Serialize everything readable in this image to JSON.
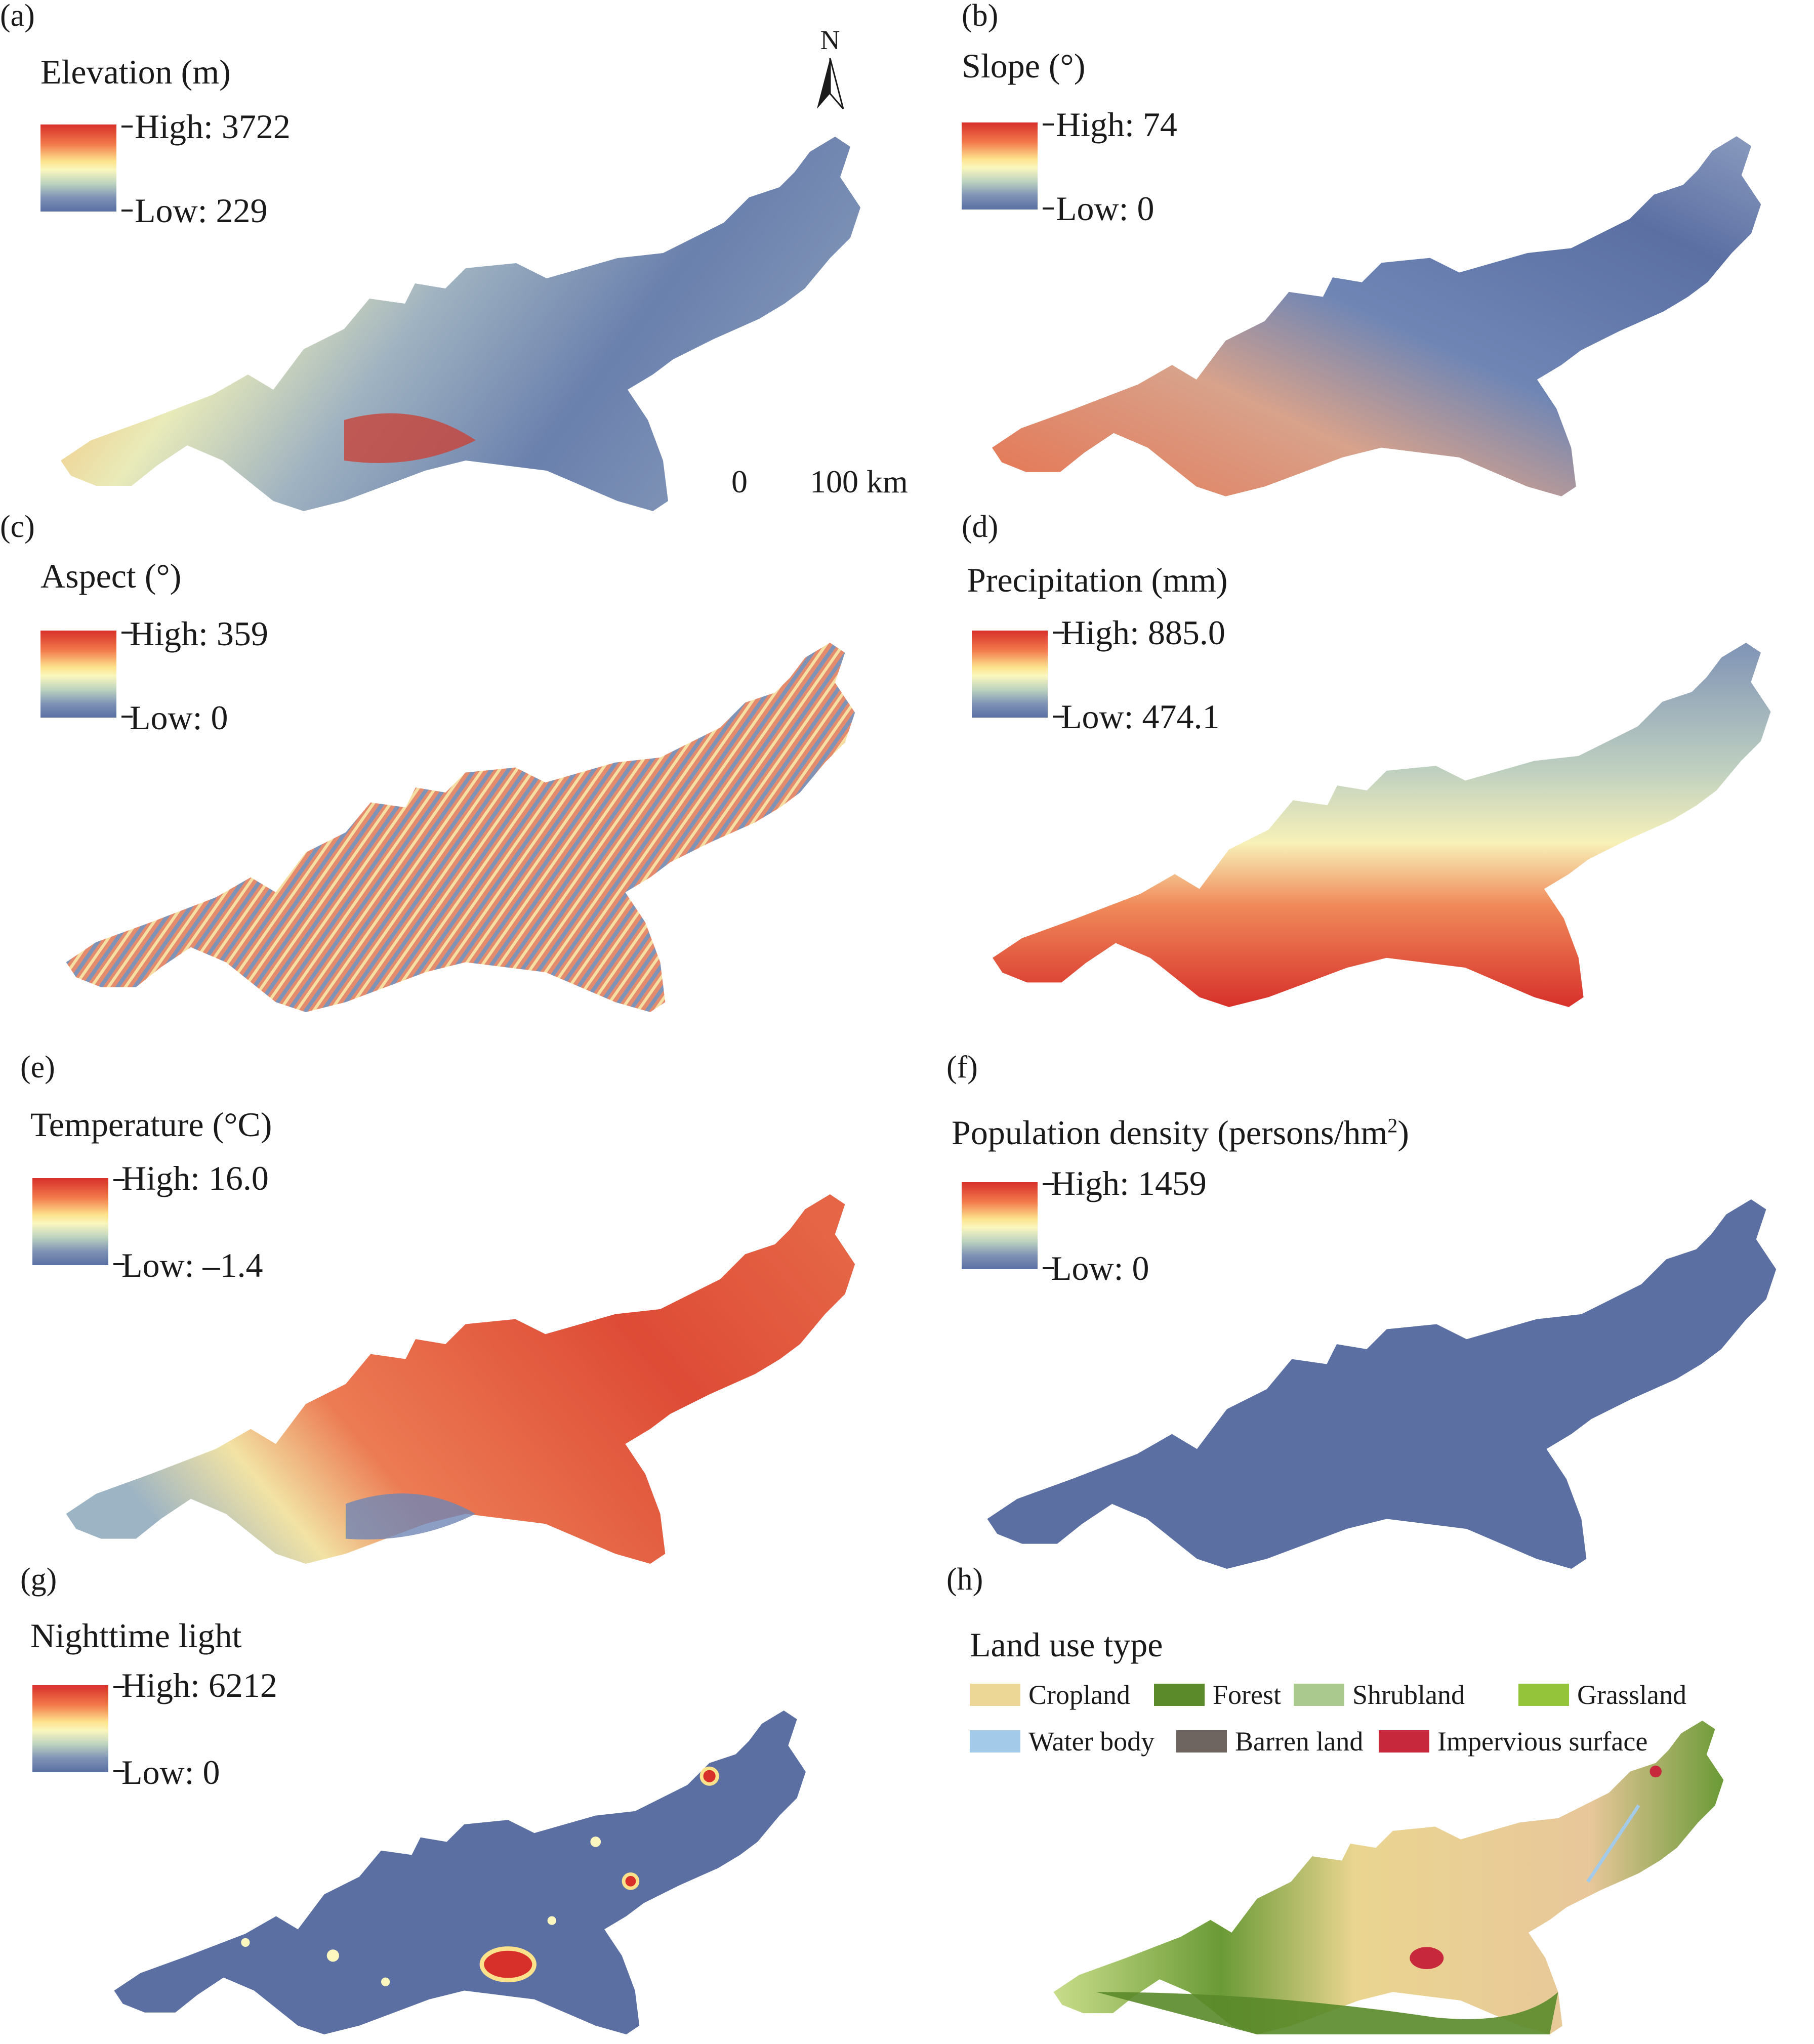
{
  "panels": [
    {
      "id": "a",
      "label": "(a)",
      "title": "Elevation (m)",
      "high": "High: 3722",
      "low": "Low: 229"
    },
    {
      "id": "b",
      "label": "(b)",
      "title": "Slope (°)",
      "high": "High: 74",
      "low": "Low: 0"
    },
    {
      "id": "c",
      "label": "(c)",
      "title": "Aspect (°)",
      "high": "High: 359",
      "low": "Low: 0"
    },
    {
      "id": "d",
      "label": "(d)",
      "title": "Precipitation (mm)",
      "high": "High: 885.0",
      "low": "Low: 474.1"
    },
    {
      "id": "e",
      "label": "(e)",
      "title": "Temperature (°C)",
      "high": "High: 16.0",
      "low": "Low: –1.4"
    },
    {
      "id": "f",
      "label": "(f)",
      "title": "Population density (persons/hm",
      "title_sup": "2",
      "title_end": ")",
      "high": "High: 1459",
      "low": "Low: 0"
    },
    {
      "id": "g",
      "label": "(g)",
      "title": "Nighttime light",
      "high": "High: 6212",
      "low": "Low: 0"
    },
    {
      "id": "h",
      "label": "(h)",
      "title": "Land use type"
    }
  ],
  "north_arrow": {
    "letter": "N"
  },
  "scale_bar": {
    "start": "0",
    "end": "100 km"
  },
  "land_use_legend": [
    {
      "name": "Cropland",
      "color": "#ecd796"
    },
    {
      "name": "Forest",
      "color": "#5a8a2a"
    },
    {
      "name": "Shrubland",
      "color": "#a9c98f"
    },
    {
      "name": "Grassland",
      "color": "#93c43a"
    },
    {
      "name": "Water body",
      "color": "#a3cbe9"
    },
    {
      "name": "Barren land",
      "color": "#6f6560"
    },
    {
      "name": "Impervious surface",
      "color": "#c8283b"
    }
  ],
  "colors": {
    "ramp_high": "#d7302a",
    "ramp_mid": "#fbf7be",
    "ramp_low": "#5b6fa3",
    "pop_fill": "#5b6fa3",
    "light_fill": "#5b6fa3"
  }
}
